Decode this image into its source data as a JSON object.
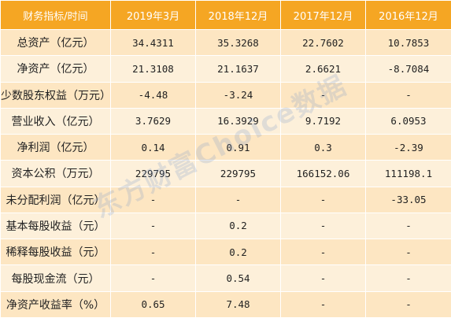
{
  "header": {
    "label": "财务指标/时间",
    "periods": [
      "2019年3月",
      "2018年12月",
      "2017年12月",
      "2016年12月"
    ]
  },
  "rows": [
    {
      "label": "总资产（亿元）",
      "values": [
        "34.4311",
        "35.3268",
        "22.7602",
        "10.7853"
      ]
    },
    {
      "label": "净资产（亿元）",
      "values": [
        "21.3108",
        "21.1637",
        "2.6621",
        "-8.7084"
      ]
    },
    {
      "label": "少数股东权益（万元）",
      "values": [
        "-4.48",
        "-3.24",
        "-",
        "-"
      ]
    },
    {
      "label": "营业收入（亿元）",
      "values": [
        "3.7629",
        "16.3929",
        "9.7192",
        "6.0953"
      ]
    },
    {
      "label": "净利润（亿元）",
      "values": [
        "0.14",
        "0.91",
        "0.3",
        "-2.39"
      ]
    },
    {
      "label": "资本公积（万元）",
      "values": [
        "229795",
        "229795",
        "166152.06",
        "111198.1"
      ]
    },
    {
      "label": "未分配利润（亿元）",
      "values": [
        "-",
        "-",
        "-",
        "-33.05"
      ]
    },
    {
      "label": "基本每股收益（元）",
      "values": [
        "-",
        "0.2",
        "-",
        "-"
      ]
    },
    {
      "label": "稀释每股收益（元）",
      "values": [
        "-",
        "0.2",
        "-",
        "-"
      ]
    },
    {
      "label": "每股现金流（元）",
      "values": [
        "-",
        "0.54",
        "-",
        "-"
      ]
    },
    {
      "label": "净资产收益率（%）",
      "values": [
        "0.65",
        "7.48",
        "-",
        "-"
      ]
    }
  ],
  "watermark": "东方财富Choice数据",
  "colors": {
    "header_bg": "#f5a623",
    "row_odd": "#fde6c2",
    "row_even": "#fdf0da"
  }
}
